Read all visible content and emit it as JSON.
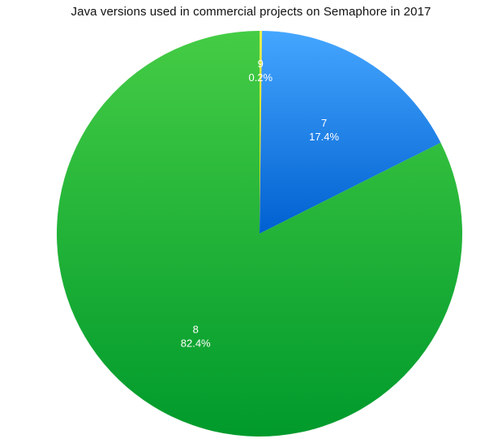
{
  "chart_data": {
    "type": "pie",
    "title": "Java versions used in commercial projects on Semaphore in 2017",
    "slices": [
      {
        "label": "9",
        "percent_label": "0.2%",
        "value": 0.2,
        "color_top": "#e6f04a",
        "color_bottom": "#c9d400"
      },
      {
        "label": "7",
        "percent_label": "17.4%",
        "value": 17.4,
        "color_top": "#45a6ff",
        "color_bottom": "#0060d0"
      },
      {
        "label": "8",
        "percent_label": "82.4%",
        "value": 82.4,
        "color_top": "#45cc45",
        "color_bottom": "#009a2c"
      }
    ],
    "start_angle": "12 o'clock",
    "direction": "clockwise",
    "legend": "none"
  }
}
